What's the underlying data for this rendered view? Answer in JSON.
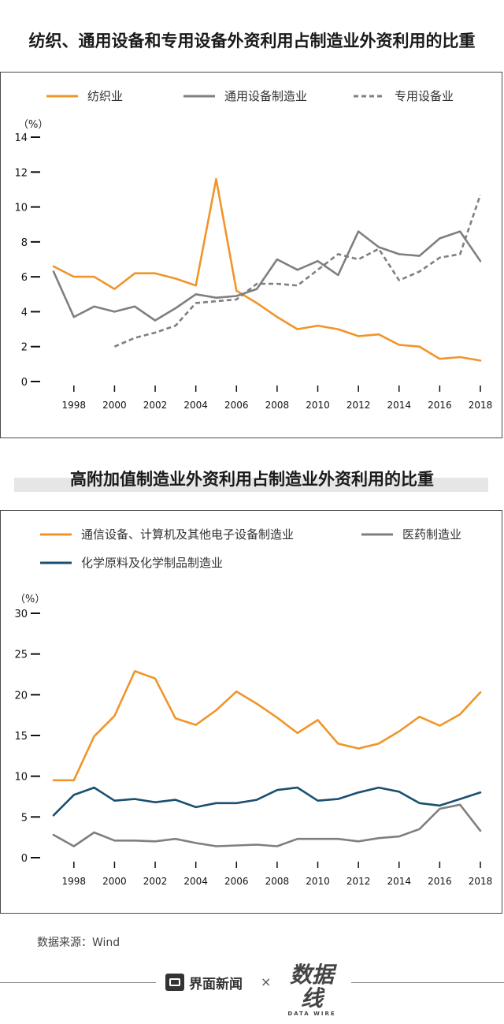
{
  "chart_data": [
    {
      "type": "line",
      "title": "纺织、通用设备和专用设备外资利用占制造业外资利用的比重",
      "ylabel": "（%）",
      "ylim": [
        0,
        14
      ],
      "yticks": [
        0,
        2,
        4,
        6,
        8,
        10,
        12,
        14
      ],
      "xlim": [
        1997,
        2018
      ],
      "xticks": [
        1998,
        2000,
        2002,
        2004,
        2006,
        2008,
        2010,
        2012,
        2014,
        2016,
        2018
      ],
      "series": [
        {
          "name": "纺织业",
          "color": "#f0952a",
          "dashed": false,
          "x": [
            1997,
            1998,
            1999,
            2000,
            2001,
            2002,
            2003,
            2004,
            2005,
            2006,
            2007,
            2008,
            2009,
            2010,
            2011,
            2012,
            2013,
            2014,
            2015,
            2016,
            2017,
            2018
          ],
          "values": [
            6.6,
            6.0,
            6.0,
            5.3,
            6.2,
            6.2,
            5.9,
            5.5,
            11.6,
            5.2,
            4.5,
            3.7,
            3.0,
            3.2,
            3.0,
            2.6,
            2.7,
            2.1,
            2.0,
            1.3,
            1.4,
            1.2
          ]
        },
        {
          "name": "通用设备制造业",
          "color": "#7f7f7f",
          "dashed": false,
          "x": [
            1997,
            1998,
            1999,
            2000,
            2001,
            2002,
            2003,
            2004,
            2005,
            2006,
            2007,
            2008,
            2009,
            2010,
            2011,
            2012,
            2013,
            2014,
            2015,
            2016,
            2017,
            2018
          ],
          "values": [
            6.3,
            3.7,
            4.3,
            4.0,
            4.3,
            3.5,
            4.2,
            5.0,
            4.8,
            4.9,
            5.3,
            7.0,
            6.4,
            6.9,
            6.1,
            8.6,
            7.7,
            7.3,
            7.2,
            8.2,
            8.6,
            6.9
          ]
        },
        {
          "name": "专用设备业",
          "color": "#7f7f7f",
          "dashed": true,
          "x": [
            2000,
            2001,
            2002,
            2003,
            2004,
            2005,
            2006,
            2007,
            2008,
            2009,
            2010,
            2011,
            2012,
            2013,
            2014,
            2015,
            2016,
            2017,
            2018
          ],
          "values": [
            2.0,
            2.5,
            2.8,
            3.2,
            4.5,
            4.6,
            4.7,
            5.6,
            5.6,
            5.5,
            6.4,
            7.3,
            7.0,
            7.6,
            5.8,
            6.3,
            7.1,
            7.3,
            10.7
          ]
        }
      ]
    },
    {
      "type": "line",
      "title": "高附加值制造业外资利用占制造业外资利用的比重",
      "ylabel": "（%）",
      "ylim": [
        0,
        30
      ],
      "yticks": [
        0,
        5,
        10,
        15,
        20,
        25,
        30
      ],
      "xlim": [
        1997,
        2018
      ],
      "xticks": [
        1998,
        2000,
        2002,
        2004,
        2006,
        2008,
        2010,
        2012,
        2014,
        2016,
        2018
      ],
      "series": [
        {
          "name": "通信设备、计算机及其他电子设备制造业",
          "color": "#f0952a",
          "dashed": false,
          "x": [
            1997,
            1998,
            1999,
            2000,
            2001,
            2002,
            2003,
            2004,
            2005,
            2006,
            2007,
            2008,
            2009,
            2010,
            2011,
            2012,
            2013,
            2014,
            2015,
            2016,
            2017,
            2018
          ],
          "values": [
            9.5,
            9.5,
            14.9,
            17.4,
            22.9,
            22.0,
            17.1,
            16.3,
            18.1,
            20.4,
            18.9,
            17.2,
            15.3,
            16.9,
            14.0,
            13.4,
            14.0,
            15.5,
            17.3,
            16.2,
            17.6,
            20.3
          ]
        },
        {
          "name": "医药制造业",
          "color": "#7f7f7f",
          "dashed": false,
          "x": [
            1997,
            1998,
            1999,
            2000,
            2001,
            2002,
            2003,
            2004,
            2005,
            2006,
            2007,
            2008,
            2009,
            2010,
            2011,
            2012,
            2013,
            2014,
            2015,
            2016,
            2017,
            2018
          ],
          "values": [
            2.8,
            1.4,
            3.1,
            2.1,
            2.1,
            2.0,
            2.3,
            1.8,
            1.4,
            1.5,
            1.6,
            1.4,
            2.3,
            2.3,
            2.3,
            2.0,
            2.4,
            2.6,
            3.5,
            6.0,
            6.5,
            3.3
          ]
        },
        {
          "name": "化学原料及化学制品制造业",
          "color": "#1b4f72",
          "dashed": false,
          "x": [
            1997,
            1998,
            1999,
            2000,
            2001,
            2002,
            2003,
            2004,
            2005,
            2006,
            2007,
            2008,
            2009,
            2010,
            2011,
            2012,
            2013,
            2014,
            2015,
            2016,
            2017,
            2018
          ],
          "values": [
            5.2,
            7.7,
            8.6,
            7.0,
            7.2,
            6.8,
            7.1,
            6.2,
            6.7,
            6.7,
            7.1,
            8.3,
            8.6,
            7.0,
            7.2,
            8.0,
            8.6,
            8.1,
            6.7,
            6.4,
            7.2,
            8.0
          ]
        }
      ]
    }
  ],
  "source": "数据来源：Wind",
  "footer": {
    "brand": "界面新闻",
    "cross": "×",
    "logo_main": "数据线",
    "logo_sub": "DATA WIRE"
  }
}
